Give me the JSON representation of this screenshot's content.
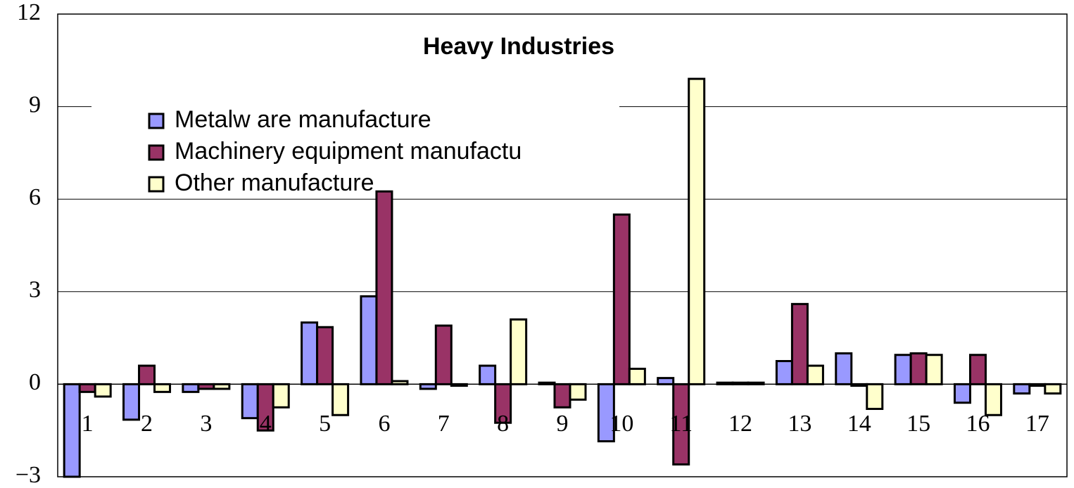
{
  "chart_data": {
    "type": "bar",
    "title": "Heavy Industries",
    "categories": [
      "1",
      "2",
      "3",
      "4",
      "5",
      "6",
      "7",
      "8",
      "9",
      "10",
      "11",
      "12",
      "13",
      "14",
      "15",
      "16",
      "17"
    ],
    "series": [
      {
        "name": "Metalw are manufacture",
        "color": "#9999ff",
        "values": [
          -3.0,
          -1.15,
          -0.25,
          -1.1,
          2.0,
          2.85,
          -0.15,
          0.6,
          0.05,
          -1.85,
          0.2,
          0.05,
          0.75,
          1.0,
          0.95,
          -0.6,
          -0.3
        ]
      },
      {
        "name": "Machinery equipment manufactu",
        "color": "#993366",
        "values": [
          -0.25,
          0.6,
          -0.15,
          -1.5,
          1.85,
          6.25,
          1.9,
          -1.25,
          -0.75,
          5.5,
          -2.6,
          0.05,
          2.6,
          -0.05,
          1.0,
          0.95,
          -0.05
        ]
      },
      {
        "name": "Other manufacture",
        "color": "#ffffcc",
        "values": [
          -0.4,
          -0.25,
          -0.15,
          -0.75,
          -1.0,
          0.1,
          -0.05,
          2.1,
          -0.5,
          0.5,
          9.9,
          0.05,
          0.6,
          -0.8,
          0.95,
          -1.0,
          -0.3
        ]
      }
    ],
    "ylim": [
      -3,
      12
    ],
    "yticks": [
      {
        "value": -3,
        "label": "−3"
      },
      0,
      3,
      6,
      9,
      12
    ],
    "grid": true
  }
}
